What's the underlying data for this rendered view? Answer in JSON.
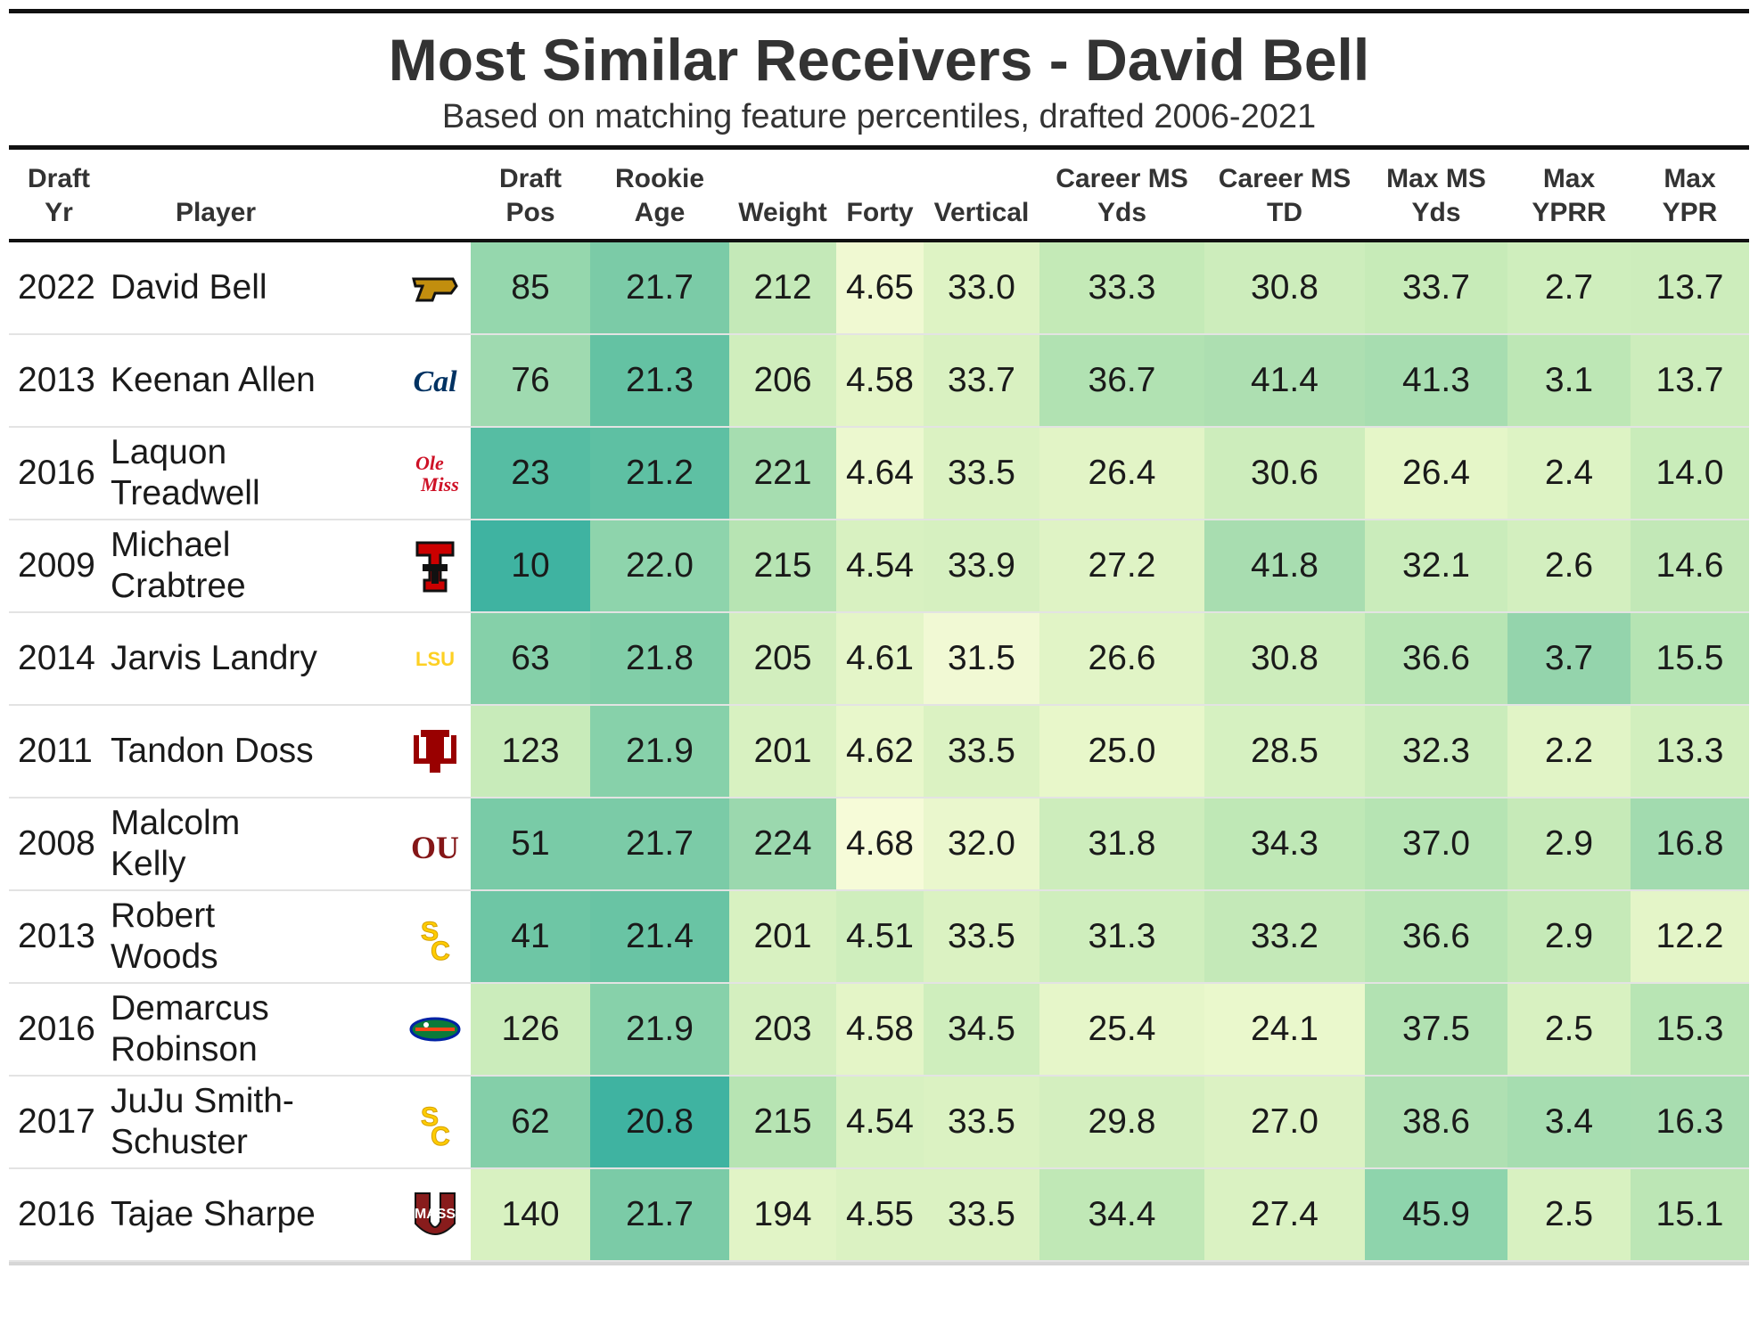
{
  "title": "Most Similar Receivers - David Bell",
  "subtitle": "Based on matching feature percentiles, drafted 2006-2021",
  "chart_data": {
    "type": "table",
    "columns": [
      {
        "key": "draft_yr",
        "label": [
          "Draft",
          "Yr"
        ]
      },
      {
        "key": "player",
        "label": [
          "",
          "Player"
        ]
      },
      {
        "key": "logo",
        "label": [
          "",
          ""
        ]
      },
      {
        "key": "draft_pos",
        "label": [
          "Draft",
          "Pos"
        ]
      },
      {
        "key": "rookie_age",
        "label": [
          "Rookie",
          "Age"
        ]
      },
      {
        "key": "weight",
        "label": [
          "",
          "Weight"
        ]
      },
      {
        "key": "forty",
        "label": [
          "",
          "Forty"
        ]
      },
      {
        "key": "vertical",
        "label": [
          "",
          "Vertical"
        ]
      },
      {
        "key": "career_ms_yds",
        "label": [
          "Career MS",
          "Yds"
        ]
      },
      {
        "key": "career_ms_td",
        "label": [
          "Career MS",
          "TD"
        ]
      },
      {
        "key": "max_ms_yds",
        "label": [
          "Max MS",
          "Yds"
        ]
      },
      {
        "key": "max_yprr",
        "label": [
          "Max",
          "YPRR"
        ]
      },
      {
        "key": "max_ypr",
        "label": [
          "Max",
          "YPR"
        ]
      }
    ],
    "rows": [
      {
        "draft_yr": "2022",
        "player": [
          "David Bell"
        ],
        "logo": "purdue-logo",
        "values": [
          "85",
          "21.7",
          "212",
          "4.65",
          "33.0",
          "33.3",
          "30.8",
          "33.7",
          "2.7",
          "13.7"
        ],
        "colors": [
          "#95d7ad",
          "#7bcba7",
          "#c4e9b8",
          "#f0f9d2",
          "#def3c4",
          "#c4eab7",
          "#cdedbc",
          "#c7ebb8",
          "#cfeebd",
          "#cdedbc"
        ]
      },
      {
        "draft_yr": "2013",
        "player": [
          "Keenan Allen"
        ],
        "logo": "cal-logo",
        "values": [
          "76",
          "21.3",
          "206",
          "4.58",
          "33.7",
          "36.7",
          "41.4",
          "41.3",
          "3.1",
          "13.7"
        ],
        "colors": [
          "#9fdab0",
          "#64c2a3",
          "#d0eebd",
          "#e4f5c7",
          "#d9f1c1",
          "#b1e2b2",
          "#addfb1",
          "#a7ddb0",
          "#bde7b5",
          "#cdedbc"
        ]
      },
      {
        "draft_yr": "2016",
        "player": [
          "Laquon",
          "Treadwell"
        ],
        "logo": "ole-miss-logo",
        "values": [
          "23",
          "21.2",
          "221",
          "4.64",
          "33.5",
          "26.4",
          "30.6",
          "26.4",
          "2.4",
          "14.0"
        ],
        "colors": [
          "#56bda3",
          "#5ec0a3",
          "#a6ddb0",
          "#ecf8cf",
          "#dbf2c2",
          "#e2f4c6",
          "#cdedbc",
          "#e5f6c8",
          "#ddf3c4",
          "#c9ecba"
        ]
      },
      {
        "draft_yr": "2009",
        "player": [
          "Michael Crabtree"
        ],
        "logo": "texas-tech-logo",
        "values": [
          "10",
          "22.0",
          "215",
          "4.54",
          "33.9",
          "27.2",
          "41.8",
          "32.1",
          "2.6",
          "14.6"
        ],
        "colors": [
          "#3fb3a1",
          "#8ed4ac",
          "#b7e4b3",
          "#d8f1c1",
          "#d6f0c0",
          "#dff3c5",
          "#a8ddb0",
          "#caecbb",
          "#d3efbf",
          "#c2e8b7"
        ]
      },
      {
        "draft_yr": "2014",
        "player": [
          "Jarvis Landry"
        ],
        "logo": "lsu-logo",
        "values": [
          "63",
          "21.8",
          "205",
          "4.61",
          "31.5",
          "26.6",
          "30.8",
          "36.6",
          "3.7",
          "15.5"
        ],
        "colors": [
          "#85d0a9",
          "#81cea8",
          "#d2eebe",
          "#e4f5c8",
          "#f1f9d4",
          "#e1f4c6",
          "#cdedbc",
          "#b8e5b4",
          "#94d4ac",
          "#b5e4b3"
        ]
      },
      {
        "draft_yr": "2011",
        "player": [
          "Tandon Doss"
        ],
        "logo": "indiana-logo",
        "values": [
          "123",
          "21.9",
          "201",
          "4.62",
          "33.5",
          "25.0",
          "28.5",
          "32.3",
          "2.2",
          "13.3"
        ],
        "colors": [
          "#c8ebba",
          "#87d1aa",
          "#d8f1c1",
          "#e8f7cb",
          "#dbf2c2",
          "#e8f7ca",
          "#d6f1c1",
          "#caecbb",
          "#e1f4c6",
          "#d2efbe"
        ]
      },
      {
        "draft_yr": "2008",
        "player": [
          "Malcolm Kelly"
        ],
        "logo": "oklahoma-logo",
        "values": [
          "51",
          "21.7",
          "224",
          "4.68",
          "32.0",
          "31.8",
          "34.3",
          "37.0",
          "2.9",
          "16.8"
        ],
        "colors": [
          "#79cba7",
          "#7bcba7",
          "#9bd8ae",
          "#f6fbd8",
          "#eaf7cd",
          "#cdedbc",
          "#bfe8b6",
          "#b6e4b3",
          "#c6eab8",
          "#a2dbaf"
        ]
      },
      {
        "draft_yr": "2013",
        "player": [
          "Robert Woods"
        ],
        "logo": "usc-logo",
        "values": [
          "41",
          "21.4",
          "201",
          "4.51",
          "33.5",
          "31.3",
          "33.2",
          "36.6",
          "2.9",
          "12.2"
        ],
        "colors": [
          "#6ec6a5",
          "#69c4a4",
          "#d8f1c1",
          "#cfeebd",
          "#dbf2c2",
          "#cfeebd",
          "#c4e9b8",
          "#b8e5b4",
          "#c6eab8",
          "#e4f5c8"
        ]
      },
      {
        "draft_yr": "2016",
        "player": [
          "Demarcus",
          "Robinson"
        ],
        "logo": "florida-logo",
        "values": [
          "126",
          "21.9",
          "203",
          "4.58",
          "34.5",
          "25.4",
          "24.1",
          "37.5",
          "2.5",
          "15.3"
        ],
        "colors": [
          "#cbecbb",
          "#87d1aa",
          "#d4efbf",
          "#e4f5c7",
          "#cfeebd",
          "#e6f6c9",
          "#eaf8cc",
          "#b2e2b2",
          "#d8f1c1",
          "#b8e5b4"
        ]
      },
      {
        "draft_yr": "2017",
        "player": [
          "JuJu Smith-",
          "Schuster"
        ],
        "logo": "usc-logo",
        "values": [
          "62",
          "20.8",
          "215",
          "4.54",
          "33.5",
          "29.8",
          "27.0",
          "38.6",
          "3.4",
          "16.3"
        ],
        "colors": [
          "#84cfa9",
          "#3fb3a1",
          "#b7e4b3",
          "#d8f1c1",
          "#dbf2c2",
          "#d4efbf",
          "#dcf2c3",
          "#afe0b2",
          "#a6ddb0",
          "#a8ddb0"
        ]
      },
      {
        "draft_yr": "2016",
        "player": [
          "Tajae Sharpe"
        ],
        "logo": "umass-logo",
        "values": [
          "140",
          "21.7",
          "194",
          "4.55",
          "33.5",
          "34.4",
          "27.4",
          "45.9",
          "2.5",
          "15.1"
        ],
        "colors": [
          "#d8f1c1",
          "#7bcba7",
          "#e1f4c6",
          "#dbf2c2",
          "#dbf2c2",
          "#c0e8b6",
          "#daf2c2",
          "#8ed4ac",
          "#d8f1c1",
          "#bce6b5"
        ]
      }
    ]
  }
}
